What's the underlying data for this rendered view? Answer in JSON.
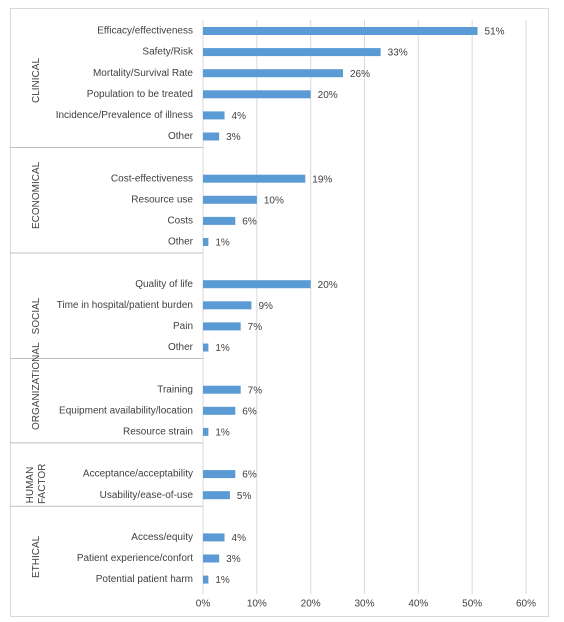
{
  "chart_data": {
    "type": "bar",
    "color": "#5b9bd5",
    "grid": true,
    "xlim": [
      0,
      60
    ],
    "xticks": [
      {
        "value": 0,
        "label": "0%"
      },
      {
        "value": 10,
        "label": "10%"
      },
      {
        "value": 20,
        "label": "20%"
      },
      {
        "value": 30,
        "label": "30%"
      },
      {
        "value": 40,
        "label": "40%"
      },
      {
        "value": 50,
        "label": "50%"
      },
      {
        "value": 60,
        "label": "60%"
      }
    ],
    "groups": [
      {
        "name": "CLINICAL",
        "categories": [
          "Efficacy/effectiveness",
          "Safety/Risk",
          "Mortality/Survival Rate",
          "Population to be treated",
          "Incidence/Prevalence of illness",
          "Other"
        ],
        "values": [
          51,
          33,
          26,
          20,
          4,
          3
        ],
        "value_labels": [
          "51%",
          "33%",
          "26%",
          "20%",
          "4%",
          "3%"
        ]
      },
      {
        "name": "ECONOMICAL",
        "categories": [
          "Cost-effectiveness",
          "Resource use",
          "Costs",
          "Other"
        ],
        "values": [
          19,
          10,
          6,
          1
        ],
        "value_labels": [
          "19%",
          "10%",
          "6%",
          "1%"
        ]
      },
      {
        "name": "SOCIAL",
        "categories": [
          "Quality of life",
          "Time in hospital/patient burden",
          "Pain",
          "Other"
        ],
        "values": [
          20,
          9,
          7,
          1
        ],
        "value_labels": [
          "20%",
          "9%",
          "7%",
          "1%"
        ]
      },
      {
        "name": "ORGANIZATIONAL",
        "categories": [
          "Training",
          "Equipment availability/location",
          "Resource strain"
        ],
        "values": [
          7,
          6,
          1
        ],
        "value_labels": [
          "7%",
          "6%",
          "1%"
        ]
      },
      {
        "name": "HUMAN FACTOR",
        "categories": [
          "Acceptance/acceptability",
          "Usability/ease-of-use"
        ],
        "values": [
          6,
          5
        ],
        "value_labels": [
          "6%",
          "5%"
        ]
      },
      {
        "name": "ETHICAL",
        "categories": [
          "Access/equity",
          "Patient experience/confort",
          "Potential patient harm"
        ],
        "values": [
          4,
          3,
          1
        ],
        "value_labels": [
          "4%",
          "3%",
          "1%"
        ]
      }
    ]
  }
}
